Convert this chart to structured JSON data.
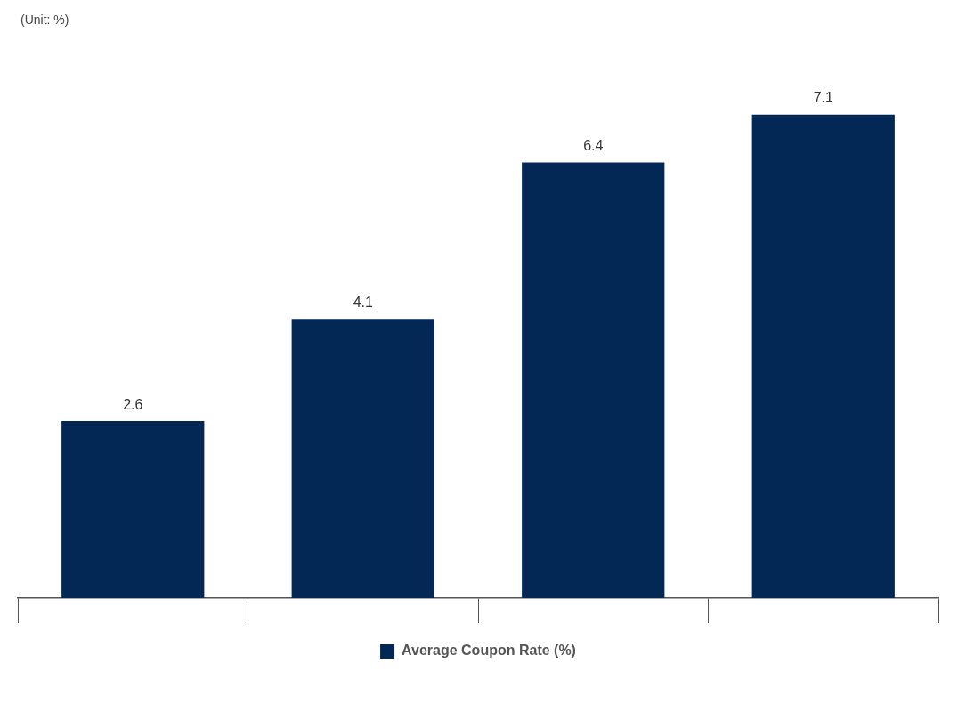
{
  "chart_data": {
    "type": "bar",
    "categories": [
      null,
      null,
      null,
      null
    ],
    "series": [
      {
        "name": "Average Coupon Rate (%)",
        "color": "#032856",
        "values": [
          2.6,
          4.1,
          6.4,
          7.1
        ]
      }
    ],
    "data_labels": true,
    "legend": "bottom",
    "grid": false,
    "tick_labels": false,
    "annotations": [
      "(Unit: %)"
    ]
  }
}
